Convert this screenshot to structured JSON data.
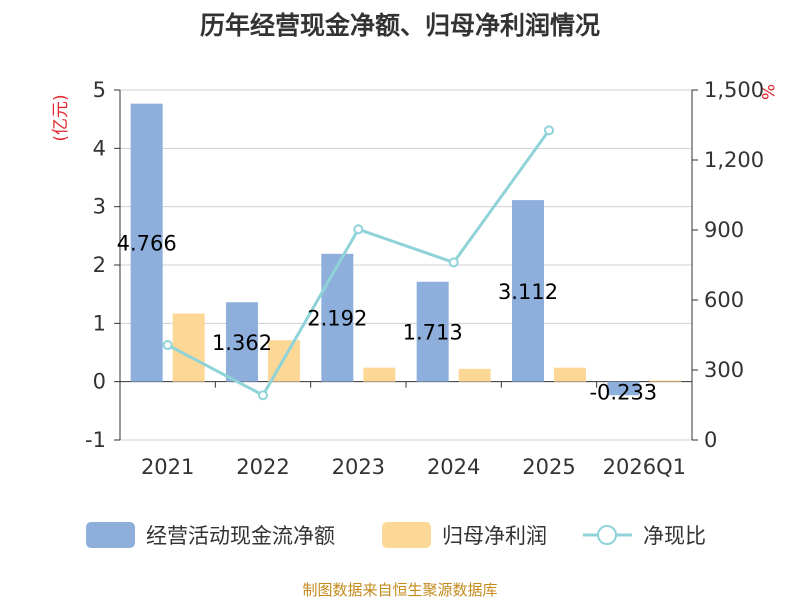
{
  "chart_data": {
    "type": "bar",
    "title": "历年经营现金净额、归母净利润情况",
    "categories": [
      "2021",
      "2022",
      "2023",
      "2024",
      "2025",
      "2026Q1"
    ],
    "series": [
      {
        "name": "经营活动现金流净额",
        "type": "bar",
        "axis": "left",
        "color": "#8eaedb",
        "values": [
          4.766,
          1.362,
          2.192,
          1.713,
          3.112,
          -0.233
        ],
        "labels": [
          "4.766",
          "1.362",
          "2.192",
          "1.713",
          "3.112",
          "-0.233"
        ]
      },
      {
        "name": "归母净利润",
        "type": "bar",
        "axis": "left",
        "color": "#fdd795",
        "values": [
          1.17,
          0.71,
          0.24,
          0.22,
          0.24,
          0.02
        ]
      },
      {
        "name": "净现比",
        "type": "line",
        "axis": "right",
        "color": "#8fd3d9",
        "values": [
          407,
          192,
          903,
          761,
          1327,
          null
        ]
      }
    ],
    "y_left": {
      "unit": "(亿元)",
      "ylim": [
        -1,
        5
      ],
      "ticks": [
        "-1",
        "0",
        "1",
        "2",
        "3",
        "4",
        "5"
      ]
    },
    "y_right": {
      "unit": "%",
      "ylim": [
        0,
        1500
      ],
      "ticks": [
        "0",
        "300",
        "600",
        "900",
        "1,200",
        "1,500"
      ]
    },
    "grid": true,
    "legend_position": "bottom"
  },
  "source": "制图数据来自恒生聚源数据库"
}
